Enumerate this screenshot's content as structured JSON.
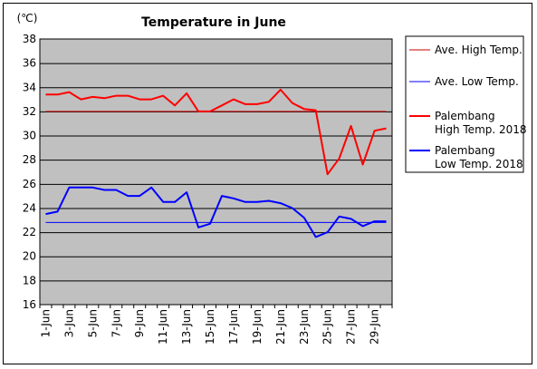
{
  "chart_data": {
    "type": "line",
    "title": "Temperature in June",
    "ylabel": "(℃)",
    "ylim": [
      16,
      38
    ],
    "yticks": [
      16,
      18,
      20,
      22,
      24,
      26,
      28,
      30,
      32,
      34,
      36,
      38
    ],
    "grid": true,
    "legend_position": "right",
    "plot_background": "#c0c0c0",
    "x": [
      1,
      2,
      3,
      4,
      5,
      6,
      7,
      8,
      9,
      10,
      11,
      12,
      13,
      14,
      15,
      16,
      17,
      18,
      19,
      20,
      21,
      22,
      23,
      24,
      25,
      26,
      27,
      28,
      29,
      30
    ],
    "xtick_labels": [
      "1-Jun",
      "3-Jun",
      "5-Jun",
      "7-Jun",
      "9-Jun",
      "11-Jun",
      "13-Jun",
      "15-Jun",
      "17-Jun",
      "19-Jun",
      "21-Jun",
      "23-Jun",
      "25-Jun",
      "27-Jun",
      "29-Jun"
    ],
    "series": [
      {
        "name": "Ave. High Temp.",
        "color": "#cc0000",
        "width": 1,
        "values": [
          32.0,
          32.0,
          32.0,
          32.0,
          32.0,
          32.0,
          32.0,
          32.0,
          32.0,
          32.0,
          32.0,
          32.0,
          32.0,
          32.0,
          32.0,
          32.0,
          32.0,
          32.0,
          32.0,
          32.0,
          32.0,
          32.0,
          32.0,
          32.0,
          32.0,
          32.0,
          32.0,
          32.0,
          32.0,
          32.0
        ]
      },
      {
        "name": "Ave. Low Temp.",
        "color": "#0000ff",
        "width": 1,
        "values": [
          22.8,
          22.8,
          22.8,
          22.8,
          22.8,
          22.8,
          22.8,
          22.8,
          22.8,
          22.8,
          22.8,
          22.8,
          22.8,
          22.8,
          22.8,
          22.8,
          22.8,
          22.8,
          22.8,
          22.8,
          22.8,
          22.8,
          22.8,
          22.8,
          22.8,
          22.8,
          22.8,
          22.8,
          22.8,
          22.8
        ]
      },
      {
        "name": "Palembang High Temp. 2018",
        "color": "#ff0000",
        "width": 2,
        "values": [
          33.4,
          33.4,
          33.6,
          33.0,
          33.2,
          33.1,
          33.3,
          33.3,
          33.0,
          33.0,
          33.3,
          32.5,
          33.5,
          32.0,
          32.0,
          32.5,
          33.0,
          32.6,
          32.6,
          32.8,
          33.8,
          32.7,
          32.2,
          32.1,
          26.8,
          28.1,
          30.8,
          27.6,
          30.4,
          30.6
        ]
      },
      {
        "name": "Palembang Low Temp. 2018",
        "color": "#0000ff",
        "width": 2,
        "values": [
          23.5,
          23.7,
          25.7,
          25.7,
          25.7,
          25.5,
          25.5,
          25.0,
          25.0,
          25.7,
          24.5,
          24.5,
          25.3,
          22.4,
          22.7,
          25.0,
          24.8,
          24.5,
          24.5,
          24.6,
          24.4,
          24.0,
          23.2,
          21.6,
          22.0,
          23.3,
          23.1,
          22.5,
          22.9,
          22.9
        ]
      }
    ]
  },
  "legend": {
    "items": [
      {
        "line1": "Ave. High Temp.",
        "line2": ""
      },
      {
        "line1": "Ave. Low Temp.",
        "line2": ""
      },
      {
        "line1": "Palembang",
        "line2": "High Temp. 2018"
      },
      {
        "line1": "Palembang",
        "line2": "Low Temp. 2018"
      }
    ]
  }
}
